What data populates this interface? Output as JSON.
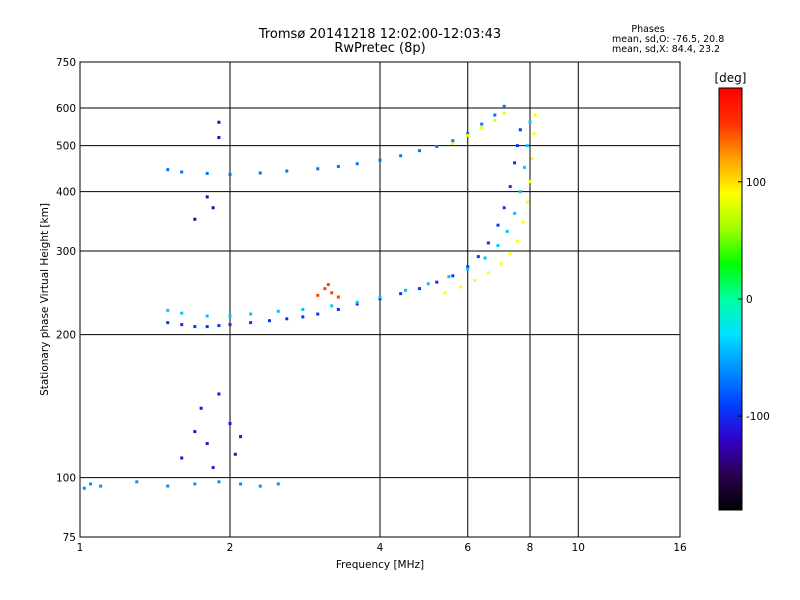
{
  "header": {
    "title": "Tromsø 20141218 12:02:00-12:03:43",
    "subtitle": "RwPretec (8p)"
  },
  "stats": {
    "heading": "Phases",
    "line_o": "mean, sd,O: -76.5, 20.8",
    "line_x": "mean, sd,X: 84.4, 23.2"
  },
  "colorbar": {
    "label": "[deg]",
    "min": -180,
    "max": 180,
    "ticks": [
      {
        "value": 100,
        "label": "100"
      },
      {
        "value": 0,
        "label": "0"
      },
      {
        "value": -100,
        "label": "-100"
      }
    ],
    "colormap": [
      "#000000",
      "#2a0050",
      "#3000c8",
      "#0040ff",
      "#0090ff",
      "#00e0ff",
      "#00ffa0",
      "#00ff00",
      "#a0ff00",
      "#ffff00",
      "#ffa000",
      "#ff3000",
      "#ff0000"
    ]
  },
  "chart_data": {
    "type": "scatter",
    "xlabel": "Frequency [MHz]",
    "ylabel": "Stationary phase Virtual Height [km]",
    "xscale": "log2",
    "yscale": "log",
    "xlim": [
      1,
      16
    ],
    "ylim": [
      75,
      750
    ],
    "x_ticks": [
      {
        "value": 1,
        "label": "1"
      },
      {
        "value": 2,
        "label": "2"
      },
      {
        "value": 4,
        "label": "4"
      },
      {
        "value": 6,
        "label": "6"
      },
      {
        "value": 8,
        "label": "8"
      },
      {
        "value": 10,
        "label": "10"
      },
      {
        "value": 16,
        "label": "16"
      }
    ],
    "y_ticks": [
      {
        "value": 75,
        "label": "75"
      },
      {
        "value": 100,
        "label": "100"
      },
      {
        "value": 200,
        "label": "200"
      },
      {
        "value": 300,
        "label": "300"
      },
      {
        "value": 400,
        "label": "400"
      },
      {
        "value": 500,
        "label": "500"
      },
      {
        "value": 600,
        "label": "600"
      },
      {
        "value": 750,
        "label": "750"
      }
    ],
    "grid": true,
    "traces": [
      {
        "points": [
          [
            1.5,
            212
          ],
          [
            1.6,
            210
          ],
          [
            1.7,
            208
          ],
          [
            1.8,
            208
          ],
          [
            1.9,
            209
          ],
          [
            2.0,
            210
          ],
          [
            2.2,
            212
          ],
          [
            2.4,
            214
          ],
          [
            2.6,
            216
          ],
          [
            2.8,
            218
          ],
          [
            3.0,
            221
          ],
          [
            3.3,
            226
          ],
          [
            3.6,
            232
          ],
          [
            4.0,
            238
          ],
          [
            4.4,
            244
          ],
          [
            4.8,
            250
          ],
          [
            5.2,
            258
          ],
          [
            5.6,
            266
          ],
          [
            6.0,
            278
          ],
          [
            6.3,
            292
          ],
          [
            6.6,
            312
          ],
          [
            6.9,
            340
          ],
          [
            7.1,
            370
          ],
          [
            7.3,
            410
          ],
          [
            7.45,
            460
          ],
          [
            7.55,
            500
          ],
          [
            7.65,
            540
          ]
        ],
        "phase": -95
      },
      {
        "points": [
          [
            1.5,
            225
          ],
          [
            1.6,
            222
          ],
          [
            1.8,
            219
          ],
          [
            2.0,
            219
          ],
          [
            2.2,
            221
          ],
          [
            2.5,
            224
          ],
          [
            2.8,
            226
          ],
          [
            3.2,
            230
          ],
          [
            3.6,
            234
          ],
          [
            4.0,
            240
          ],
          [
            4.5,
            248
          ],
          [
            5.0,
            256
          ],
          [
            5.5,
            265
          ],
          [
            6.0,
            275
          ],
          [
            6.5,
            290
          ],
          [
            6.9,
            308
          ],
          [
            7.2,
            330
          ],
          [
            7.45,
            360
          ],
          [
            7.65,
            400
          ],
          [
            7.8,
            450
          ],
          [
            7.9,
            500
          ],
          [
            8.0,
            560
          ]
        ],
        "phase": -40
      },
      {
        "points": [
          [
            5.4,
            245
          ],
          [
            5.8,
            252
          ],
          [
            6.2,
            260
          ],
          [
            6.6,
            270
          ],
          [
            7.0,
            282
          ],
          [
            7.3,
            296
          ],
          [
            7.55,
            315
          ],
          [
            7.75,
            345
          ],
          [
            7.9,
            380
          ],
          [
            8.0,
            420
          ],
          [
            8.08,
            470
          ],
          [
            8.15,
            530
          ],
          [
            8.2,
            580
          ]
        ],
        "phase": 90
      },
      {
        "points": [
          [
            1.5,
            445
          ],
          [
            1.6,
            440
          ],
          [
            1.8,
            437
          ],
          [
            2.0,
            435
          ],
          [
            2.3,
            438
          ],
          [
            2.6,
            442
          ],
          [
            3.0,
            447
          ],
          [
            3.3,
            452
          ],
          [
            3.6,
            458
          ],
          [
            4.0,
            466
          ],
          [
            4.4,
            476
          ],
          [
            4.8,
            488
          ],
          [
            5.2,
            498
          ],
          [
            5.6,
            512
          ],
          [
            6.0,
            530
          ],
          [
            6.4,
            555
          ],
          [
            6.8,
            580
          ],
          [
            7.1,
            605
          ]
        ],
        "phase": -70
      },
      {
        "points": [
          [
            5.6,
            505
          ],
          [
            6.0,
            525
          ],
          [
            6.4,
            545
          ],
          [
            6.8,
            565
          ],
          [
            7.1,
            585
          ]
        ],
        "phase": 85
      },
      {
        "points": [
          [
            1.02,
            95
          ],
          [
            1.05,
            97
          ],
          [
            1.1,
            96
          ],
          [
            1.3,
            98
          ],
          [
            1.5,
            96
          ],
          [
            1.7,
            97
          ],
          [
            1.9,
            98
          ],
          [
            2.1,
            97
          ],
          [
            2.3,
            96
          ],
          [
            2.5,
            97
          ]
        ],
        "phase": -60
      },
      {
        "points": [
          [
            1.6,
            110
          ],
          [
            1.7,
            125
          ],
          [
            1.75,
            140
          ],
          [
            1.8,
            118
          ],
          [
            1.85,
            105
          ],
          [
            1.9,
            150
          ],
          [
            2.0,
            130
          ],
          [
            2.05,
            112
          ],
          [
            2.1,
            122
          ]
        ],
        "phase": -110
      },
      {
        "points": [
          [
            3.1,
            250
          ],
          [
            3.2,
            245
          ],
          [
            3.3,
            240
          ],
          [
            3.0,
            242
          ],
          [
            3.15,
            255
          ]
        ],
        "phase": 145
      },
      {
        "points": [
          [
            1.8,
            390
          ],
          [
            1.85,
            370
          ],
          [
            1.7,
            350
          ],
          [
            1.9,
            560
          ],
          [
            1.9,
            520
          ]
        ],
        "phase": -120
      }
    ]
  }
}
